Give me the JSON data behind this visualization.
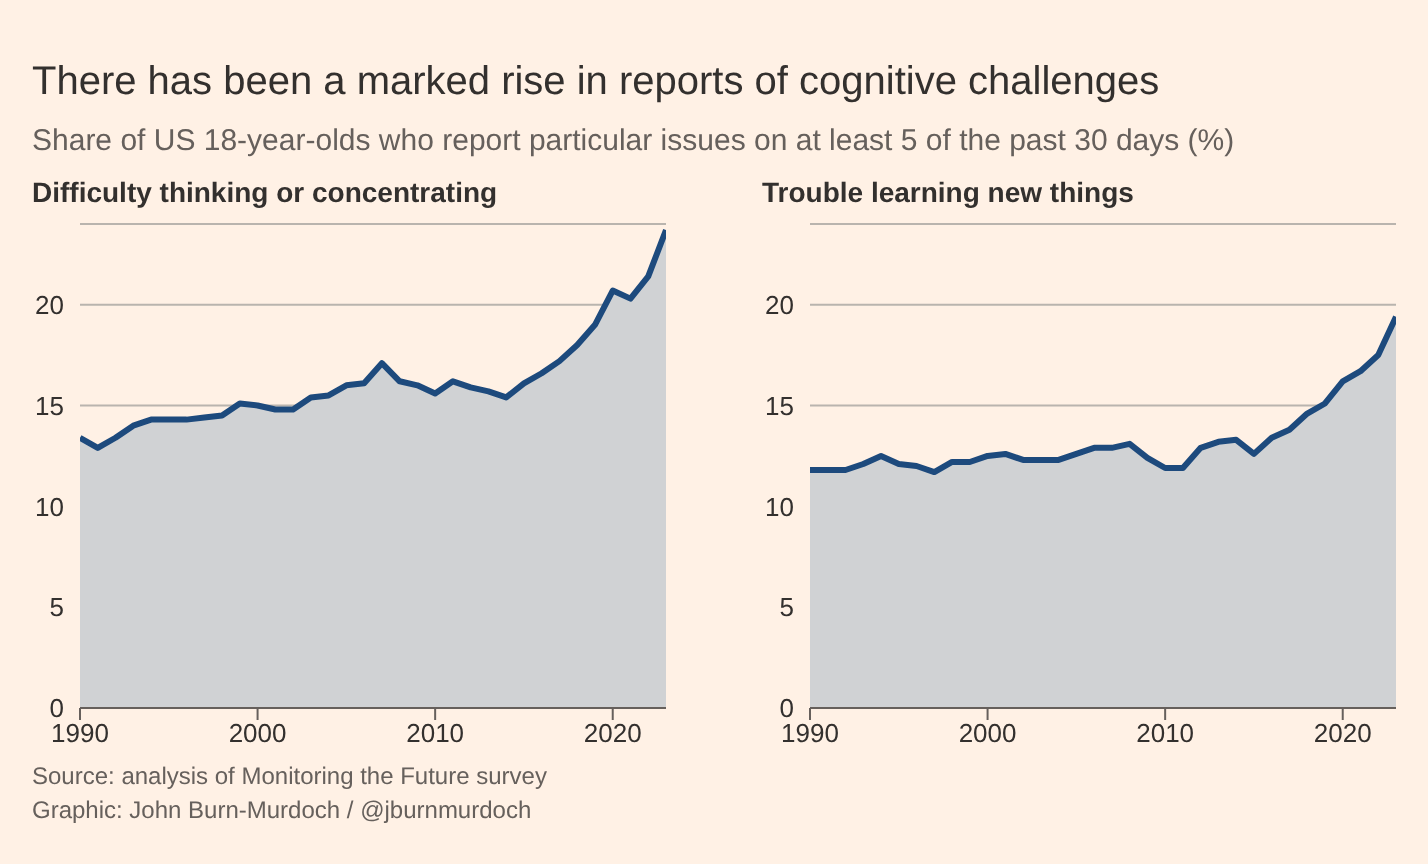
{
  "chart_data": [
    {
      "type": "area",
      "title": "There has been a marked rise in reports of cognitive challenges",
      "subtitle": "Share of US 18-year-olds who report particular issues on at least 5 of the past 30 days (%)",
      "annotations": [
        "Source: analysis of Monitoring the Future survey",
        "Graphic: John Burn-Murdoch / @jburnmurdoch"
      ],
      "x": [
        1990,
        1991,
        1992,
        1993,
        1994,
        1995,
        1996,
        1997,
        1998,
        1999,
        2000,
        2001,
        2002,
        2003,
        2004,
        2005,
        2006,
        2007,
        2008,
        2009,
        2010,
        2011,
        2012,
        2013,
        2014,
        2015,
        2016,
        2017,
        2018,
        2019,
        2020,
        2021,
        2022,
        2023
      ],
      "series": [
        {
          "name": "Difficulty thinking or concentrating",
          "color": "#1d4a7d",
          "values": [
            13.4,
            12.9,
            13.4,
            14.0,
            14.3,
            14.3,
            14.3,
            14.4,
            14.5,
            15.1,
            15.0,
            14.8,
            14.8,
            15.4,
            15.5,
            16.0,
            16.1,
            17.1,
            16.2,
            16.0,
            15.6,
            16.2,
            15.9,
            15.7,
            15.4,
            16.1,
            16.6,
            17.2,
            18.0,
            19.0,
            20.7,
            20.3,
            21.4,
            23.7
          ]
        }
      ],
      "xlim": [
        1990,
        2023
      ],
      "xticks": [
        1990,
        2000,
        2010,
        2020
      ],
      "ylim": [
        0,
        24
      ],
      "yticks": [
        0,
        5,
        10,
        15,
        20
      ],
      "grid": "y"
    },
    {
      "type": "area",
      "x": [
        1990,
        1991,
        1992,
        1993,
        1994,
        1995,
        1996,
        1997,
        1998,
        1999,
        2000,
        2001,
        2002,
        2003,
        2004,
        2005,
        2006,
        2007,
        2008,
        2009,
        2010,
        2011,
        2012,
        2013,
        2014,
        2015,
        2016,
        2017,
        2018,
        2019,
        2020,
        2021,
        2022,
        2023
      ],
      "series": [
        {
          "name": "Trouble learning new things",
          "color": "#1d4a7d",
          "values": [
            11.8,
            11.8,
            11.8,
            12.1,
            12.5,
            12.1,
            12.0,
            11.7,
            12.2,
            12.2,
            12.5,
            12.6,
            12.3,
            12.3,
            12.3,
            12.6,
            12.9,
            12.9,
            13.1,
            12.4,
            11.9,
            11.9,
            12.9,
            13.2,
            13.3,
            12.6,
            13.4,
            13.8,
            14.6,
            15.1,
            16.2,
            16.7,
            17.5,
            19.4
          ]
        }
      ],
      "xlim": [
        1990,
        2023
      ],
      "xticks": [
        1990,
        2000,
        2010,
        2020
      ],
      "ylim": [
        0,
        24
      ],
      "yticks": [
        0,
        5,
        10,
        15,
        20
      ],
      "grid": "y"
    }
  ]
}
